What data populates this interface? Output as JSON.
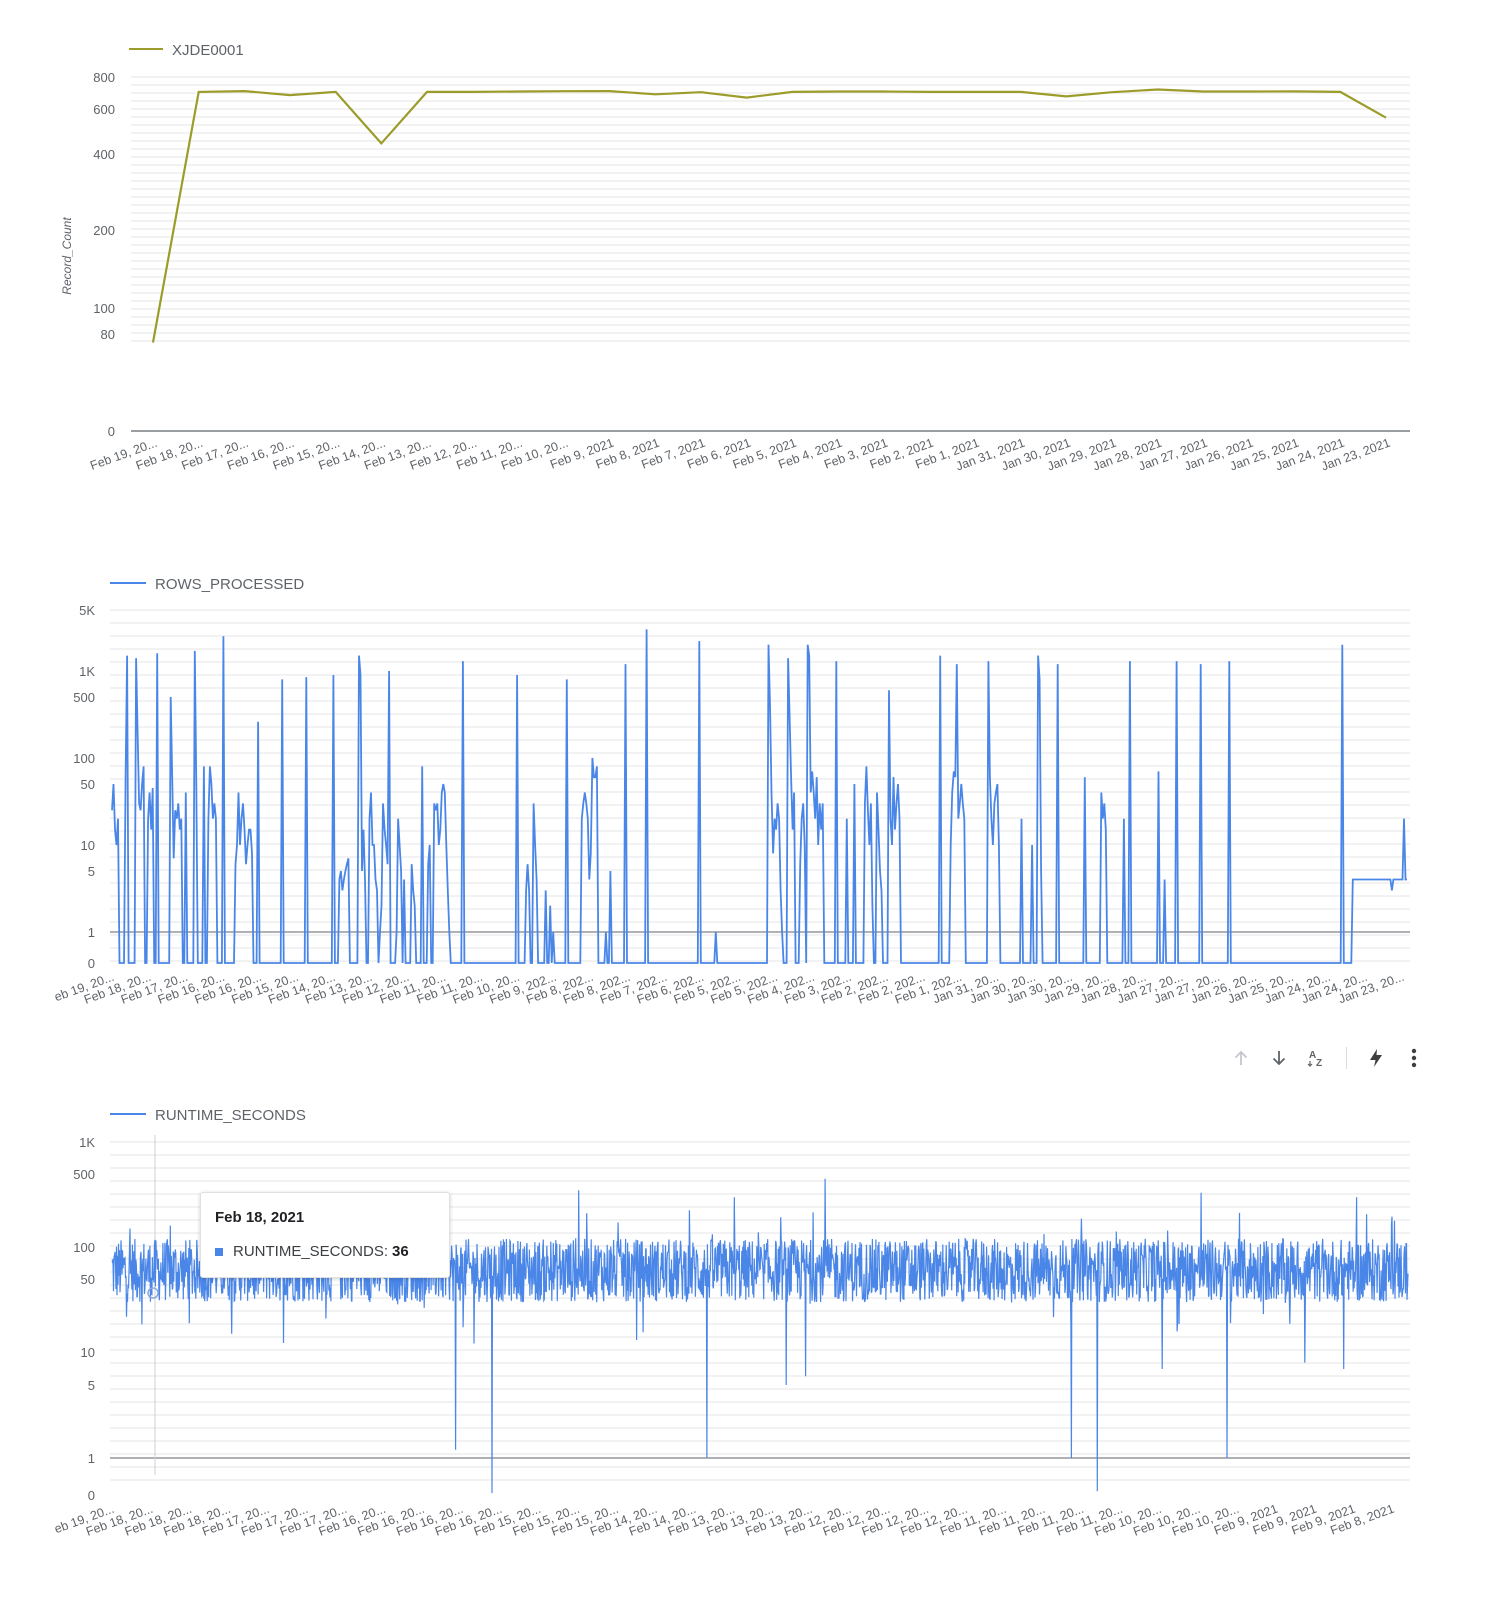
{
  "colors": {
    "olive": "#9c9c2b",
    "blue": "#4a86e8",
    "grid": "#e6e6e6",
    "axis": "#5f6368"
  },
  "toolbar": {
    "icons": [
      "arrow-up-icon",
      "arrow-down-icon",
      "sort-az-icon",
      "lightning-icon",
      "more-vert-icon"
    ],
    "sort_label": "AZ"
  },
  "tooltip": {
    "date": "Feb 18, 2021",
    "series": "RUNTIME_SECONDS:",
    "value": "36"
  },
  "chart_data": [
    {
      "type": "line",
      "legend": "XJDE0001",
      "ylabel": "Record_Count",
      "y_scale": "symlog",
      "y_ticks": [
        "0",
        "80",
        "100",
        "200",
        "400",
        "600",
        "800"
      ],
      "x": [
        "Feb 19, 20...",
        "Feb 18, 20...",
        "Feb 17, 20...",
        "Feb 16, 20...",
        "Feb 15, 20...",
        "Feb 14, 20...",
        "Feb 13, 20...",
        "Feb 12, 20...",
        "Feb 11, 20...",
        "Feb 10, 20...",
        "Feb 9, 2021",
        "Feb 8, 2021",
        "Feb 7, 2021",
        "Feb 6, 2021",
        "Feb 5, 2021",
        "Feb 4, 2021",
        "Feb 3, 2021",
        "Feb 2, 2021",
        "Feb 1, 2021",
        "Jan 31, 2021",
        "Jan 30, 2021",
        "Jan 29, 2021",
        "Jan 28, 2021",
        "Jan 27, 2021",
        "Jan 26, 2021",
        "Jan 25, 2021",
        "Jan 24, 2021",
        "Jan 23, 2021"
      ],
      "values": [
        73,
        700,
        705,
        680,
        700,
        440,
        700,
        700,
        702,
        704,
        705,
        685,
        698,
        665,
        700,
        702,
        702,
        700,
        700,
        700,
        672,
        698,
        715,
        702,
        702,
        703,
        700,
        555
      ]
    },
    {
      "type": "line",
      "legend": "ROWS_PROCESSED",
      "y_scale": "symlog",
      "y_ticks": [
        "0",
        "1",
        "5",
        "10",
        "50",
        "100",
        "500",
        "1K",
        "5K"
      ],
      "x_ticks": [
        "eb 19, 20...",
        "Feb 18, 20...",
        "Feb 17, 20...",
        "Feb 16, 20...",
        "Feb 16, 20...",
        "Feb 15, 20...",
        "Feb 14, 20...",
        "Feb 13, 20...",
        "Feb 12, 20...",
        "Feb 11, 20...",
        "Feb 11, 20...",
        "Feb 10, 20...",
        "Feb 9, 202...",
        "Feb 8, 202...",
        "Feb 8, 202...",
        "Feb 7, 202...",
        "Feb 6, 202...",
        "Feb 5, 202...",
        "Feb 5, 202...",
        "Feb 4, 202...",
        "Feb 3, 202...",
        "Feb 2, 202...",
        "Feb 2, 202...",
        "Feb 1, 202...",
        "Jan 31, 20...",
        "Jan 30, 20...",
        "Jan 30, 20...",
        "Jan 29, 20...",
        "Jan 28, 20...",
        "Jan 27, 20...",
        "Jan 27, 20...",
        "Jan 26, 20...",
        "Jan 25, 20...",
        "Jan 24, 20...",
        "Jan 24, 20...",
        "Jan 23, 20..."
      ],
      "values": [
        25,
        50,
        15,
        10,
        20,
        0,
        0,
        0,
        0,
        60,
        1500,
        0,
        0,
        0,
        0,
        0,
        1400,
        200,
        30,
        25,
        50,
        80,
        0,
        0,
        20,
        40,
        15,
        45,
        0,
        0,
        1600,
        0,
        0,
        0,
        0,
        0,
        0,
        0,
        0,
        500,
        60,
        7,
        25,
        20,
        30,
        15,
        20,
        0,
        0,
        40,
        0,
        0,
        0,
        0,
        0,
        1700,
        50,
        0,
        0,
        0,
        0,
        80,
        0,
        0,
        20,
        80,
        50,
        20,
        30,
        20,
        0,
        0,
        0,
        0,
        2500,
        0,
        0,
        0,
        0,
        0,
        0,
        0,
        6,
        10,
        40,
        10,
        20,
        30,
        15,
        6,
        10,
        15,
        15,
        8,
        0,
        0,
        0,
        260,
        0,
        0,
        0,
        0,
        0,
        0,
        0,
        0,
        0,
        0,
        0,
        0,
        0,
        0,
        0,
        800,
        0,
        0,
        0,
        0,
        0,
        0,
        0,
        0,
        0,
        0,
        0,
        0,
        0,
        0,
        0,
        850,
        0,
        0,
        0,
        0,
        0,
        0,
        0,
        0,
        0,
        0,
        0,
        0,
        0,
        0,
        0,
        0,
        0,
        900,
        0,
        0,
        0,
        4,
        5,
        3,
        4,
        5,
        6,
        7,
        0,
        0,
        0,
        0,
        0,
        0,
        1500,
        900,
        5,
        15,
        4,
        0,
        0,
        20,
        40,
        10,
        10,
        4,
        3,
        0,
        1,
        2,
        30,
        15,
        10,
        6,
        1000,
        0,
        0,
        0,
        0,
        1,
        20,
        10,
        5,
        0,
        4,
        0,
        0,
        0,
        0,
        6,
        3,
        2,
        0,
        0,
        0,
        0,
        80,
        0,
        0,
        0,
        6,
        10,
        0,
        0,
        30,
        25,
        30,
        10,
        15,
        40,
        50,
        40,
        10,
        3,
        1,
        0,
        0,
        0,
        0,
        0,
        0,
        0,
        0,
        1300,
        0,
        0,
        0,
        0,
        0,
        0,
        0,
        0,
        0,
        0,
        0,
        0,
        0,
        0,
        0,
        0,
        0,
        0,
        0,
        0,
        0,
        0,
        0,
        0,
        0,
        0,
        0,
        0,
        0,
        0,
        0,
        0,
        0,
        0,
        0,
        900,
        0,
        0,
        0,
        0,
        0,
        3,
        6,
        3,
        0,
        0,
        30,
        10,
        4,
        0,
        0,
        0,
        0,
        0,
        3,
        0,
        0,
        2,
        0,
        1,
        0,
        0,
        0,
        0,
        0,
        0,
        0,
        0,
        800,
        0,
        0,
        0,
        0,
        0,
        0,
        0,
        0,
        0,
        20,
        30,
        40,
        30,
        20,
        4,
        8,
        100,
        60,
        60,
        80,
        0,
        0,
        0,
        0,
        0,
        1,
        0,
        0,
        5,
        0,
        0,
        0,
        0,
        0,
        0,
        0,
        0,
        0,
        1200,
        0,
        0,
        0,
        0,
        0,
        0,
        0,
        0,
        0,
        0,
        0,
        0,
        0,
        3000,
        0,
        0,
        0,
        0,
        0,
        0,
        0,
        0,
        0,
        0,
        0,
        0,
        0,
        0,
        0,
        0,
        0,
        0,
        0,
        0,
        0,
        0,
        0,
        0,
        0,
        0,
        0,
        0,
        0,
        0,
        0,
        0,
        0,
        0,
        2200,
        0,
        0,
        0,
        0,
        0,
        0,
        0,
        0,
        0,
        0,
        1,
        0,
        0,
        0,
        0,
        0,
        0,
        0,
        0,
        0,
        0,
        0,
        0,
        0,
        0,
        0,
        0,
        0,
        0,
        0,
        0,
        0,
        0,
        0,
        0,
        0,
        0,
        0,
        0,
        0,
        0,
        0,
        0,
        0,
        0,
        2000,
        400,
        40,
        8,
        20,
        15,
        30,
        20,
        3,
        1,
        0,
        0,
        0,
        1400,
        300,
        60,
        15,
        40,
        0,
        0,
        0,
        6,
        20,
        30,
        10,
        0,
        2000,
        1500,
        40,
        70,
        40,
        20,
        60,
        10,
        30,
        15,
        30,
        0,
        0,
        0,
        0,
        0,
        0,
        0,
        0,
        1300,
        0,
        0,
        0,
        0,
        0,
        0,
        20,
        0,
        0,
        0,
        0,
        50,
        0,
        0,
        0,
        0,
        0,
        0,
        30,
        80,
        25,
        10,
        30,
        2,
        0,
        0,
        40,
        15,
        5,
        3,
        0,
        0,
        0,
        0,
        600,
        20,
        10,
        60,
        15,
        30,
        50,
        20,
        0,
        0,
        0,
        0,
        0,
        0,
        0,
        0,
        0,
        0,
        0,
        0,
        0,
        0,
        0,
        0,
        0,
        0,
        0,
        0,
        0,
        0,
        0,
        0,
        0,
        0,
        1500,
        0,
        0,
        0,
        0,
        0,
        0,
        10,
        40,
        70,
        60,
        1200,
        20,
        30,
        50,
        30,
        20,
        0,
        0,
        0,
        0,
        0,
        0,
        0,
        0,
        0,
        0,
        0,
        0,
        0,
        0,
        0,
        1300,
        60,
        20,
        10,
        30,
        40,
        50,
        10,
        0,
        0,
        0,
        0,
        0,
        0,
        0,
        0,
        0,
        0,
        0,
        0,
        0,
        0,
        20,
        0,
        0,
        0,
        0,
        0,
        0,
        10,
        0,
        0,
        0,
        1500,
        800,
        5,
        0,
        0,
        0,
        0,
        0,
        0,
        0,
        0,
        0,
        0,
        1200,
        0,
        0,
        0,
        0,
        0,
        0,
        0,
        0,
        0,
        0,
        0,
        0,
        0,
        0,
        0,
        0,
        0,
        60,
        0,
        0,
        0,
        0,
        0,
        0,
        0,
        0,
        0,
        0,
        40,
        20,
        30,
        15,
        0,
        0,
        0,
        0,
        0,
        0,
        0,
        0,
        0,
        0,
        0,
        20,
        0,
        0,
        0,
        1300,
        0,
        0,
        0,
        0,
        0,
        0,
        0,
        0,
        0,
        0,
        0,
        0,
        0,
        0,
        0,
        0,
        0,
        0,
        70,
        0,
        0,
        0,
        4,
        0,
        0,
        0,
        0,
        0,
        0,
        0,
        1300,
        0,
        0,
        0,
        0,
        0,
        0,
        0,
        0,
        0,
        0,
        0,
        0,
        0,
        0,
        0,
        1200,
        0,
        0,
        0,
        0,
        0,
        0,
        0,
        0,
        0,
        0,
        0,
        0,
        0,
        0,
        0,
        0,
        0,
        0,
        1300,
        0,
        0,
        0,
        0,
        0,
        0,
        0,
        0,
        0,
        0,
        0,
        0,
        0,
        0,
        0,
        0,
        0,
        0,
        0,
        0,
        0,
        0,
        0,
        0,
        0,
        0,
        0,
        0,
        0,
        0,
        0,
        0,
        0,
        0,
        0,
        0,
        0,
        0,
        0,
        0,
        0,
        0,
        0,
        0,
        0,
        0,
        0,
        0,
        0,
        0,
        0,
        0,
        0,
        0,
        0,
        0,
        0,
        0,
        0,
        0,
        0,
        0,
        0,
        0,
        0,
        0,
        0,
        0,
        0,
        0,
        0,
        0,
        0,
        0,
        2000,
        0,
        0,
        0,
        0,
        0,
        0,
        4,
        4,
        4,
        4,
        4,
        4,
        4,
        4,
        4,
        4,
        4,
        4,
        4,
        4,
        4,
        4,
        4,
        4,
        4,
        4,
        4,
        4,
        4,
        4,
        4,
        4,
        3,
        4,
        4,
        4,
        4,
        4,
        4,
        4,
        20,
        4,
        4
      ]
    },
    {
      "type": "line",
      "legend": "RUNTIME_SECONDS",
      "y_scale": "symlog",
      "y_ticks": [
        "0",
        "1",
        "5",
        "10",
        "50",
        "100",
        "500",
        "1K"
      ],
      "x_ticks": [
        "eb 19, 20...",
        "Feb 18, 20...",
        "Feb 18, 20...",
        "Feb 18, 20...",
        "Feb 17, 20...",
        "Feb 17, 20...",
        "Feb 17, 20...",
        "Feb 16, 20...",
        "Feb 16, 20...",
        "Feb 16, 20...",
        "Feb 16, 20...",
        "Feb 15, 20...",
        "Feb 15, 20...",
        "Feb 15, 20...",
        "Feb 14, 20...",
        "Feb 14, 20...",
        "Feb 13, 20...",
        "Feb 13, 20...",
        "Feb 13, 20...",
        "Feb 12, 20...",
        "Feb 12, 20...",
        "Feb 12, 20...",
        "Feb 12, 20...",
        "Feb 11, 20...",
        "Feb 11, 20...",
        "Feb 11, 20...",
        "Feb 11, 20...",
        "Feb 10, 20...",
        "Feb 10, 20...",
        "Feb 10, 20...",
        "Feb 9, 2021",
        "Feb 9, 2021",
        "Feb 9, 2021",
        "Feb 8, 2021"
      ],
      "typical_range": [
        30,
        120
      ],
      "spikes": [
        [
          0.265,
          1.2
        ],
        [
          0.293,
          0.05
        ],
        [
          0.459,
          1.0
        ],
        [
          0.52,
          5.0
        ],
        [
          0.535,
          6.0
        ],
        [
          0.74,
          1.0
        ],
        [
          0.76,
          0.1
        ],
        [
          0.81,
          7.0
        ],
        [
          0.86,
          1.0
        ],
        [
          0.92,
          8.0
        ],
        [
          0.95,
          7.0
        ],
        [
          0.36,
          350
        ],
        [
          0.55,
          450
        ],
        [
          0.48,
          300
        ],
        [
          0.84,
          330
        ],
        [
          0.96,
          300
        ]
      ]
    }
  ]
}
